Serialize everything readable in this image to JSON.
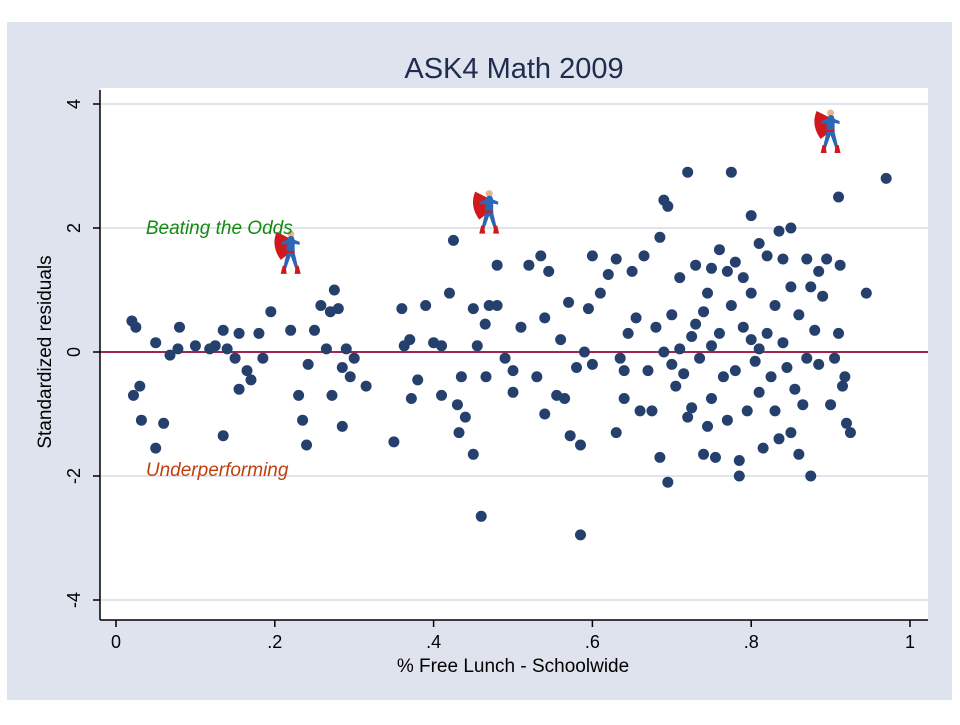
{
  "chart_data": {
    "type": "scatter",
    "title": "ASK4 Math 2009",
    "xlabel": "% Free Lunch - Schoolwide",
    "ylabel": "Standardized residuals",
    "xlim": [
      0,
      1
    ],
    "ylim": [
      -4,
      4
    ],
    "xticks": [
      {
        "v": 0,
        "label": "0"
      },
      {
        "v": 0.2,
        "label": ".2"
      },
      {
        "v": 0.4,
        "label": ".4"
      },
      {
        "v": 0.6,
        "label": ".6"
      },
      {
        "v": 0.8,
        "label": ".8"
      },
      {
        "v": 1,
        "label": "1"
      }
    ],
    "yticks": [
      {
        "v": -4,
        "label": "-4"
      },
      {
        "v": -2,
        "label": "-2"
      },
      {
        "v": 0,
        "label": "0"
      },
      {
        "v": 2,
        "label": "2"
      },
      {
        "v": 4,
        "label": "4"
      }
    ],
    "grid": true,
    "reference_line_y": 0,
    "colors": {
      "background": "#dfe3ee",
      "points": "#26406e",
      "refline": "#a3244f",
      "grid": "#e1e4ec",
      "beating": "#118a11",
      "under": "#c0400c",
      "title": "#1e2c4e"
    },
    "annotations": [
      {
        "text": "Beating the Odds",
        "x": 0.02,
        "y": 2.0,
        "color": "#118a11"
      },
      {
        "text": "Underperforming",
        "x": 0.02,
        "y": -1.9,
        "color": "#c0400c"
      }
    ],
    "superman_markers": [
      {
        "x": 0.22,
        "y": 1.55
      },
      {
        "x": 0.47,
        "y": 2.2
      },
      {
        "x": 0.9,
        "y": 3.5
      }
    ],
    "points": [
      [
        0.02,
        0.5
      ],
      [
        0.025,
        0.4
      ],
      [
        0.022,
        -0.7
      ],
      [
        0.03,
        -0.55
      ],
      [
        0.032,
        -1.1
      ],
      [
        0.05,
        0.15
      ],
      [
        0.05,
        -1.55
      ],
      [
        0.06,
        -1.15
      ],
      [
        0.068,
        -0.05
      ],
      [
        0.08,
        0.4
      ],
      [
        0.078,
        0.05
      ],
      [
        0.1,
        0.1
      ],
      [
        0.118,
        0.05
      ],
      [
        0.125,
        0.1
      ],
      [
        0.135,
        0.35
      ],
      [
        0.135,
        -1.35
      ],
      [
        0.14,
        0.05
      ],
      [
        0.15,
        -0.1
      ],
      [
        0.155,
        -0.6
      ],
      [
        0.155,
        0.3
      ],
      [
        0.165,
        -0.3
      ],
      [
        0.17,
        -0.45
      ],
      [
        0.18,
        0.3
      ],
      [
        0.185,
        -0.1
      ],
      [
        0.195,
        0.65
      ],
      [
        0.22,
        0.35
      ],
      [
        0.23,
        -0.7
      ],
      [
        0.235,
        -1.1
      ],
      [
        0.24,
        -1.5
      ],
      [
        0.242,
        -0.2
      ],
      [
        0.25,
        0.35
      ],
      [
        0.258,
        0.75
      ],
      [
        0.265,
        0.05
      ],
      [
        0.27,
        0.65
      ],
      [
        0.275,
        1.0
      ],
      [
        0.272,
        -0.7
      ],
      [
        0.28,
        0.7
      ],
      [
        0.285,
        -1.2
      ],
      [
        0.285,
        -0.25
      ],
      [
        0.29,
        0.05
      ],
      [
        0.295,
        -0.4
      ],
      [
        0.3,
        -0.1
      ],
      [
        0.315,
        -0.55
      ],
      [
        0.35,
        -1.45
      ],
      [
        0.36,
        0.7
      ],
      [
        0.363,
        0.1
      ],
      [
        0.37,
        0.2
      ],
      [
        0.372,
        -0.75
      ],
      [
        0.38,
        -0.45
      ],
      [
        0.39,
        0.75
      ],
      [
        0.4,
        0.15
      ],
      [
        0.41,
        0.1
      ],
      [
        0.41,
        -0.7
      ],
      [
        0.42,
        0.95
      ],
      [
        0.425,
        1.8
      ],
      [
        0.43,
        -0.85
      ],
      [
        0.432,
        -1.3
      ],
      [
        0.435,
        -0.4
      ],
      [
        0.44,
        -1.05
      ],
      [
        0.45,
        0.7
      ],
      [
        0.45,
        -1.65
      ],
      [
        0.455,
        0.1
      ],
      [
        0.46,
        -2.65
      ],
      [
        0.465,
        0.45
      ],
      [
        0.466,
        -0.4
      ],
      [
        0.47,
        0.75
      ],
      [
        0.48,
        0.75
      ],
      [
        0.48,
        1.4
      ],
      [
        0.49,
        -0.1
      ],
      [
        0.5,
        -0.3
      ],
      [
        0.5,
        -0.65
      ],
      [
        0.51,
        0.4
      ],
      [
        0.52,
        1.4
      ],
      [
        0.53,
        -0.4
      ],
      [
        0.535,
        1.55
      ],
      [
        0.54,
        -1.0
      ],
      [
        0.54,
        0.55
      ],
      [
        0.545,
        1.3
      ],
      [
        0.555,
        -0.7
      ],
      [
        0.56,
        0.2
      ],
      [
        0.565,
        -0.75
      ],
      [
        0.57,
        0.8
      ],
      [
        0.572,
        -1.35
      ],
      [
        0.58,
        -0.25
      ],
      [
        0.585,
        -1.5
      ],
      [
        0.585,
        -2.95
      ],
      [
        0.59,
        0.0
      ],
      [
        0.595,
        0.7
      ],
      [
        0.6,
        1.55
      ],
      [
        0.6,
        -0.2
      ],
      [
        0.61,
        0.95
      ],
      [
        0.62,
        1.25
      ],
      [
        0.63,
        1.5
      ],
      [
        0.63,
        -1.3
      ],
      [
        0.635,
        -0.1
      ],
      [
        0.64,
        -0.3
      ],
      [
        0.64,
        -0.75
      ],
      [
        0.645,
        0.3
      ],
      [
        0.65,
        1.3
      ],
      [
        0.655,
        0.55
      ],
      [
        0.66,
        -0.95
      ],
      [
        0.665,
        1.55
      ],
      [
        0.67,
        -0.3
      ],
      [
        0.675,
        -0.95
      ],
      [
        0.68,
        0.4
      ],
      [
        0.685,
        1.85
      ],
      [
        0.685,
        -1.7
      ],
      [
        0.69,
        2.45
      ],
      [
        0.69,
        0.0
      ],
      [
        0.695,
        2.35
      ],
      [
        0.695,
        -2.1
      ],
      [
        0.7,
        0.6
      ],
      [
        0.7,
        -0.2
      ],
      [
        0.705,
        -0.55
      ],
      [
        0.71,
        1.2
      ],
      [
        0.71,
        0.05
      ],
      [
        0.715,
        -0.35
      ],
      [
        0.72,
        2.9
      ],
      [
        0.72,
        -1.05
      ],
      [
        0.725,
        0.25
      ],
      [
        0.725,
        -0.9
      ],
      [
        0.73,
        1.4
      ],
      [
        0.73,
        0.45
      ],
      [
        0.735,
        -0.1
      ],
      [
        0.74,
        0.65
      ],
      [
        0.74,
        -1.65
      ],
      [
        0.745,
        0.95
      ],
      [
        0.745,
        -1.2
      ],
      [
        0.75,
        1.35
      ],
      [
        0.75,
        0.1
      ],
      [
        0.75,
        -0.75
      ],
      [
        0.755,
        -1.7
      ],
      [
        0.76,
        1.65
      ],
      [
        0.76,
        0.3
      ],
      [
        0.765,
        -0.4
      ],
      [
        0.77,
        1.3
      ],
      [
        0.77,
        -1.1
      ],
      [
        0.775,
        2.9
      ],
      [
        0.775,
        0.75
      ],
      [
        0.78,
        1.45
      ],
      [
        0.78,
        -0.3
      ],
      [
        0.785,
        -1.75
      ],
      [
        0.785,
        -2.0
      ],
      [
        0.79,
        1.2
      ],
      [
        0.79,
        0.4
      ],
      [
        0.795,
        -0.95
      ],
      [
        0.8,
        2.2
      ],
      [
        0.8,
        0.95
      ],
      [
        0.8,
        0.2
      ],
      [
        0.805,
        -0.15
      ],
      [
        0.81,
        1.75
      ],
      [
        0.81,
        0.05
      ],
      [
        0.81,
        -0.65
      ],
      [
        0.815,
        -1.55
      ],
      [
        0.82,
        1.55
      ],
      [
        0.82,
        0.3
      ],
      [
        0.825,
        -0.4
      ],
      [
        0.83,
        0.75
      ],
      [
        0.83,
        -0.95
      ],
      [
        0.835,
        1.95
      ],
      [
        0.835,
        -1.4
      ],
      [
        0.84,
        1.5
      ],
      [
        0.84,
        0.15
      ],
      [
        0.845,
        -0.25
      ],
      [
        0.85,
        2.0
      ],
      [
        0.85,
        1.05
      ],
      [
        0.85,
        -1.3
      ],
      [
        0.855,
        -0.6
      ],
      [
        0.86,
        0.6
      ],
      [
        0.86,
        -1.65
      ],
      [
        0.865,
        -0.85
      ],
      [
        0.87,
        1.5
      ],
      [
        0.87,
        -0.1
      ],
      [
        0.875,
        1.05
      ],
      [
        0.875,
        -2.0
      ],
      [
        0.88,
        0.35
      ],
      [
        0.885,
        1.3
      ],
      [
        0.885,
        -0.2
      ],
      [
        0.89,
        0.9
      ],
      [
        0.895,
        1.5
      ],
      [
        0.9,
        -0.85
      ],
      [
        0.905,
        -0.1
      ],
      [
        0.91,
        2.5
      ],
      [
        0.912,
        1.4
      ],
      [
        0.91,
        0.3
      ],
      [
        0.915,
        -0.55
      ],
      [
        0.92,
        -1.15
      ],
      [
        0.918,
        -0.4
      ],
      [
        0.925,
        -1.3
      ],
      [
        0.945,
        0.95
      ],
      [
        0.97,
        2.8
      ]
    ]
  }
}
